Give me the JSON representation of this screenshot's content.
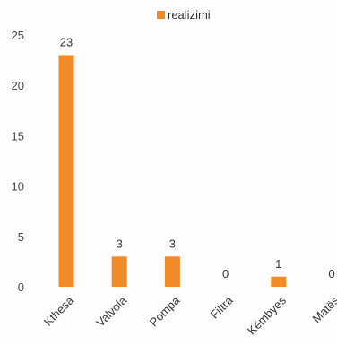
{
  "chart_data": {
    "type": "bar",
    "categories": [
      "Kthesa",
      "Valvola",
      "Pompa",
      "Filtra",
      "Këmbyes",
      "Matës"
    ],
    "series": [
      {
        "name": "realizimi",
        "values": [
          23,
          3,
          3,
          0,
          1,
          0
        ],
        "color": "#f28a2a"
      }
    ],
    "data_labels": [
      "23",
      "3",
      "3",
      "0",
      "1",
      "0"
    ],
    "ylim": [
      0,
      25
    ],
    "yticks": [
      0,
      5,
      10,
      15,
      20,
      25
    ],
    "ytick_labels": [
      "0",
      "5",
      "10",
      "15",
      "20",
      "25"
    ],
    "grid": false,
    "legend_position": "top-center"
  }
}
